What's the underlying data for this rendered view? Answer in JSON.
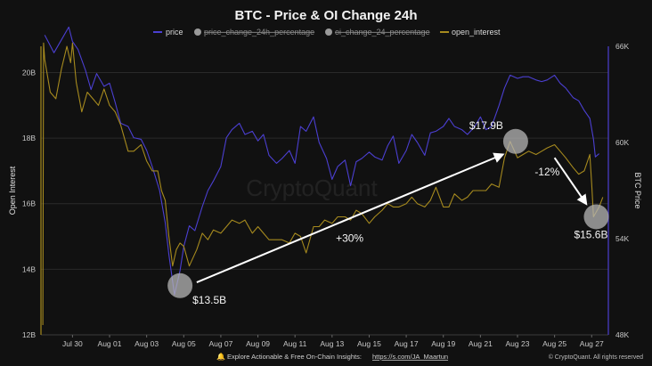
{
  "chart_data": {
    "type": "line",
    "title": "BTC - Price & OI Change 24h",
    "legend": [
      {
        "name": "price",
        "color": "#4b3fd1",
        "marker": "line",
        "active": true
      },
      {
        "name": "price_change_24h_percentage",
        "color": "#9a9a9a",
        "marker": "circle",
        "active": false
      },
      {
        "name": "oi_change_24_percentage",
        "color": "#9a9a9a",
        "marker": "circle",
        "active": false
      },
      {
        "name": "open_interest",
        "color": "#a68a1e",
        "marker": "line",
        "active": true
      }
    ],
    "legend_position": "top-center",
    "y_left": {
      "label": "Open Interest",
      "ticks": [
        "12B",
        "14B",
        "16B",
        "18B",
        "20B"
      ],
      "range": [
        12,
        20.8
      ]
    },
    "y_right": {
      "label": "BTC Price",
      "ticks": [
        "48K",
        "54K",
        "60K",
        "66K"
      ],
      "range": [
        48000,
        66000
      ]
    },
    "x": {
      "ticks": [
        "Jul 30",
        "Aug 01",
        "Aug 03",
        "Aug 05",
        "Aug 07",
        "Aug 09",
        "Aug 11",
        "Aug 13",
        "Aug 15",
        "Aug 17",
        "Aug 19",
        "Aug 21",
        "Aug 23",
        "Aug 25",
        "Aug 27"
      ],
      "range_days": [
        -1.7,
        28.9
      ]
    },
    "grid": "horizontal",
    "series": [
      {
        "name": "price",
        "axis": "right",
        "color": "#4b3fd1",
        "points": [
          [
            -1.5,
            66700
          ],
          [
            -1.0,
            65600
          ],
          [
            -0.6,
            66400
          ],
          [
            -0.2,
            67200
          ],
          [
            0.0,
            66300
          ],
          [
            0.3,
            65800
          ],
          [
            0.7,
            64500
          ],
          [
            1.0,
            63300
          ],
          [
            1.3,
            64300
          ],
          [
            1.7,
            63500
          ],
          [
            2.0,
            63700
          ],
          [
            2.3,
            62500
          ],
          [
            2.6,
            61200
          ],
          [
            3.0,
            61000
          ],
          [
            3.3,
            60300
          ],
          [
            3.7,
            60200
          ],
          [
            4.0,
            59500
          ],
          [
            4.3,
            58500
          ],
          [
            4.7,
            57000
          ],
          [
            5.0,
            55000
          ],
          [
            5.2,
            53000
          ],
          [
            5.5,
            50500
          ],
          [
            5.8,
            52000
          ],
          [
            6.0,
            53500
          ],
          [
            6.3,
            54800
          ],
          [
            6.6,
            54500
          ],
          [
            7.0,
            56000
          ],
          [
            7.3,
            57000
          ],
          [
            7.6,
            57600
          ],
          [
            8.0,
            58500
          ],
          [
            8.3,
            60300
          ],
          [
            8.6,
            60800
          ],
          [
            9.0,
            61200
          ],
          [
            9.3,
            60500
          ],
          [
            9.7,
            60700
          ],
          [
            10.0,
            60100
          ],
          [
            10.3,
            60500
          ],
          [
            10.6,
            59200
          ],
          [
            11.0,
            58700
          ],
          [
            11.3,
            59000
          ],
          [
            11.7,
            59500
          ],
          [
            12.0,
            58700
          ],
          [
            12.3,
            61000
          ],
          [
            12.6,
            60700
          ],
          [
            13.0,
            61600
          ],
          [
            13.3,
            60000
          ],
          [
            13.7,
            59000
          ],
          [
            14.0,
            57700
          ],
          [
            14.3,
            58500
          ],
          [
            14.7,
            58900
          ],
          [
            15.0,
            57300
          ],
          [
            15.3,
            58800
          ],
          [
            15.6,
            59000
          ],
          [
            16.0,
            59400
          ],
          [
            16.3,
            59100
          ],
          [
            16.7,
            58900
          ],
          [
            17.0,
            59800
          ],
          [
            17.3,
            60400
          ],
          [
            17.6,
            58700
          ],
          [
            18.0,
            59500
          ],
          [
            18.3,
            60500
          ],
          [
            18.6,
            60000
          ],
          [
            19.0,
            59200
          ],
          [
            19.3,
            60600
          ],
          [
            19.6,
            60700
          ],
          [
            20.0,
            61000
          ],
          [
            20.3,
            61500
          ],
          [
            20.6,
            61000
          ],
          [
            21.0,
            60800
          ],
          [
            21.3,
            60500
          ],
          [
            21.7,
            61000
          ],
          [
            22.0,
            61600
          ],
          [
            22.3,
            60800
          ],
          [
            22.6,
            61000
          ],
          [
            23.0,
            62300
          ],
          [
            23.3,
            63400
          ],
          [
            23.6,
            64200
          ],
          [
            24.0,
            64000
          ],
          [
            24.3,
            64100
          ],
          [
            24.6,
            64100
          ],
          [
            25.0,
            63900
          ],
          [
            25.3,
            63800
          ],
          [
            25.6,
            63900
          ],
          [
            26.0,
            64200
          ],
          [
            26.3,
            63700
          ],
          [
            26.6,
            63400
          ],
          [
            27.0,
            62800
          ],
          [
            27.3,
            62600
          ],
          [
            27.6,
            62000
          ],
          [
            27.9,
            61500
          ],
          [
            28.1,
            60200
          ],
          [
            28.2,
            59100
          ],
          [
            28.4,
            59300
          ]
        ]
      },
      {
        "name": "open_interest",
        "axis": "left",
        "color": "#a68a1e",
        "points": [
          [
            -1.6,
            12.3
          ],
          [
            -1.56,
            20.9
          ],
          [
            -1.5,
            20.4
          ],
          [
            -1.2,
            19.4
          ],
          [
            -0.9,
            19.2
          ],
          [
            -0.6,
            20.1
          ],
          [
            -0.3,
            20.8
          ],
          [
            -0.1,
            20.3
          ],
          [
            0.0,
            20.9
          ],
          [
            0.2,
            19.7
          ],
          [
            0.5,
            18.8
          ],
          [
            0.8,
            19.4
          ],
          [
            1.1,
            19.2
          ],
          [
            1.4,
            19.0
          ],
          [
            1.7,
            19.5
          ],
          [
            2.0,
            19.0
          ],
          [
            2.3,
            18.8
          ],
          [
            2.6,
            18.4
          ],
          [
            3.0,
            17.6
          ],
          [
            3.3,
            17.6
          ],
          [
            3.7,
            17.8
          ],
          [
            4.0,
            17.3
          ],
          [
            4.3,
            17.0
          ],
          [
            4.6,
            17.0
          ],
          [
            4.8,
            16.4
          ],
          [
            5.0,
            16.1
          ],
          [
            5.2,
            15.0
          ],
          [
            5.4,
            14.1
          ],
          [
            5.6,
            14.6
          ],
          [
            5.8,
            14.8
          ],
          [
            6.0,
            14.7
          ],
          [
            6.3,
            14.1
          ],
          [
            6.7,
            14.6
          ],
          [
            7.0,
            15.1
          ],
          [
            7.3,
            14.9
          ],
          [
            7.6,
            15.2
          ],
          [
            8.0,
            15.1
          ],
          [
            8.3,
            15.3
          ],
          [
            8.6,
            15.5
          ],
          [
            9.0,
            15.4
          ],
          [
            9.3,
            15.5
          ],
          [
            9.7,
            15.1
          ],
          [
            10.0,
            15.3
          ],
          [
            10.3,
            15.1
          ],
          [
            10.6,
            14.9
          ],
          [
            11.0,
            14.9
          ],
          [
            11.3,
            14.9
          ],
          [
            11.7,
            14.8
          ],
          [
            12.0,
            15.1
          ],
          [
            12.3,
            15.0
          ],
          [
            12.6,
            14.5
          ],
          [
            13.0,
            15.3
          ],
          [
            13.3,
            15.3
          ],
          [
            13.6,
            15.5
          ],
          [
            14.0,
            15.4
          ],
          [
            14.3,
            15.6
          ],
          [
            14.7,
            15.6
          ],
          [
            15.0,
            15.5
          ],
          [
            15.3,
            15.8
          ],
          [
            15.6,
            15.7
          ],
          [
            16.0,
            15.4
          ],
          [
            16.3,
            15.6
          ],
          [
            16.7,
            15.8
          ],
          [
            17.0,
            16.0
          ],
          [
            17.3,
            15.9
          ],
          [
            17.6,
            15.9
          ],
          [
            18.0,
            16.0
          ],
          [
            18.3,
            16.2
          ],
          [
            18.6,
            16.0
          ],
          [
            19.0,
            15.9
          ],
          [
            19.3,
            16.1
          ],
          [
            19.6,
            16.5
          ],
          [
            20.0,
            15.9
          ],
          [
            20.3,
            15.9
          ],
          [
            20.6,
            16.3
          ],
          [
            21.0,
            16.1
          ],
          [
            21.3,
            16.2
          ],
          [
            21.6,
            16.4
          ],
          [
            22.0,
            16.4
          ],
          [
            22.3,
            16.4
          ],
          [
            22.6,
            16.6
          ],
          [
            23.0,
            16.5
          ],
          [
            23.3,
            17.4
          ],
          [
            23.6,
            17.9
          ],
          [
            24.0,
            17.4
          ],
          [
            24.3,
            17.5
          ],
          [
            24.6,
            17.6
          ],
          [
            25.0,
            17.5
          ],
          [
            25.3,
            17.6
          ],
          [
            25.6,
            17.7
          ],
          [
            26.0,
            17.8
          ],
          [
            26.3,
            17.6
          ],
          [
            26.6,
            17.4
          ],
          [
            27.0,
            17.1
          ],
          [
            27.3,
            16.9
          ],
          [
            27.6,
            17.0
          ],
          [
            27.9,
            17.5
          ],
          [
            28.0,
            16.6
          ],
          [
            28.1,
            15.6
          ],
          [
            28.4,
            15.9
          ],
          [
            28.6,
            16.2
          ]
        ]
      }
    ],
    "annotations": {
      "circles": [
        {
          "label": "$13.5B",
          "day": 5.8,
          "oi": 13.5
        },
        {
          "label": "$17.9B",
          "day": 23.9,
          "oi": 17.9
        },
        {
          "label": "$15.6B",
          "day": 28.25,
          "oi": 15.6
        }
      ],
      "arrows": [
        {
          "label": "+30%",
          "from": [
            6.7,
            13.6
          ],
          "to": [
            23.2,
            17.5
          ]
        },
        {
          "label": "-12%",
          "from": [
            26.0,
            17.4
          ],
          "to": [
            27.7,
            16.0
          ]
        }
      ]
    },
    "watermark": "CryptoQuant"
  },
  "footer": {
    "text": "Explore Actionable & Free On-Chain Insights:",
    "link": "https://s.com/JA_Maartun",
    "copyright": "© CryptoQuant. All rights reserved"
  }
}
